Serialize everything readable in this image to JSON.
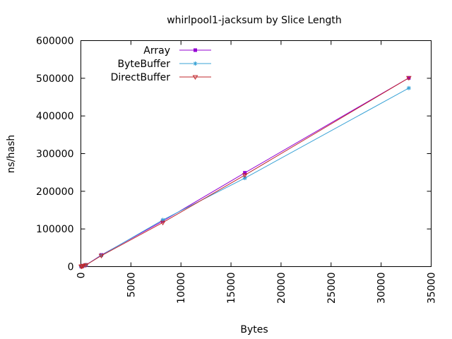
{
  "chart_data": {
    "type": "line",
    "title": "whirlpool1-jacksum by Slice Length",
    "xlabel": "Bytes",
    "ylabel": "ns/hash",
    "xlim": [
      0,
      35000
    ],
    "ylim": [
      0,
      600000
    ],
    "xticks": [
      0,
      5000,
      10000,
      15000,
      20000,
      25000,
      30000,
      35000
    ],
    "yticks": [
      0,
      100000,
      200000,
      300000,
      400000,
      500000,
      600000
    ],
    "grid": false,
    "legend": "top-left",
    "series": [
      {
        "name": "Array",
        "color": "#9400d3",
        "marker": "square",
        "points": [
          [
            32,
            300
          ],
          [
            64,
            600
          ],
          [
            128,
            1200
          ],
          [
            256,
            2300
          ],
          [
            512,
            4300
          ],
          [
            2048,
            31000
          ],
          [
            8192,
            121000
          ],
          [
            16384,
            249000
          ],
          [
            32768,
            501000
          ]
        ]
      },
      {
        "name": "ByteBuffer",
        "color": "#3aa3d6",
        "marker": "star",
        "points": [
          [
            32,
            300
          ],
          [
            64,
            600
          ],
          [
            128,
            1200
          ],
          [
            256,
            2300
          ],
          [
            512,
            4300
          ],
          [
            2048,
            30000
          ],
          [
            8192,
            124000
          ],
          [
            16384,
            235000
          ],
          [
            32768,
            474000
          ]
        ]
      },
      {
        "name": "DirectBuffer",
        "color": "#c0282e",
        "marker": "triangle-down",
        "points": [
          [
            32,
            300
          ],
          [
            64,
            600
          ],
          [
            128,
            1200
          ],
          [
            256,
            2300
          ],
          [
            512,
            4300
          ],
          [
            2048,
            29000
          ],
          [
            8192,
            117000
          ],
          [
            16384,
            243000
          ],
          [
            32768,
            501000
          ]
        ]
      }
    ]
  }
}
